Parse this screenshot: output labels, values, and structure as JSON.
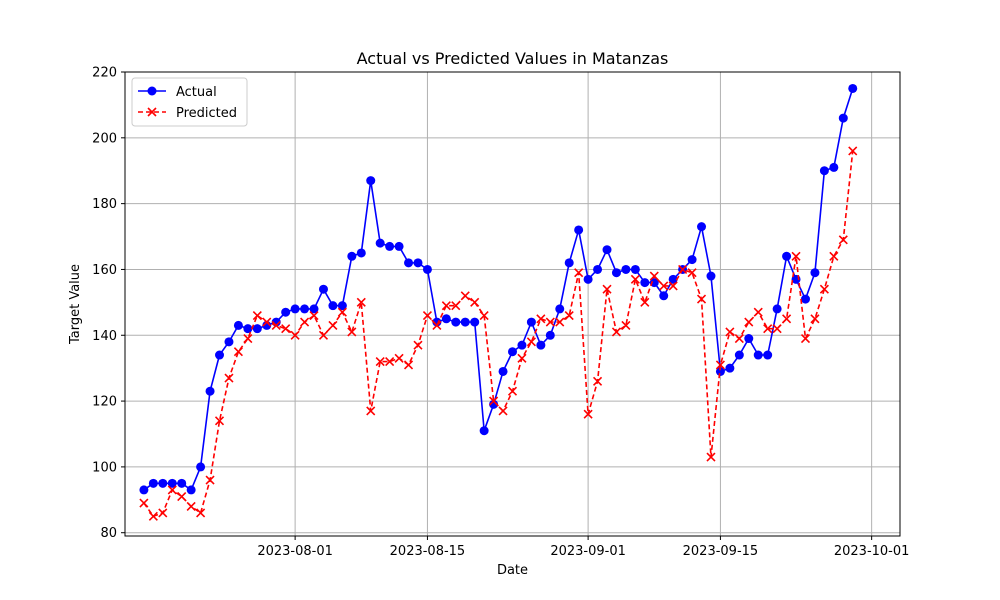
{
  "chart_data": {
    "type": "line",
    "title": "Actual vs Predicted Values in Matanzas",
    "xlabel": "Date",
    "ylabel": "Target Value",
    "start_date": "2023-07-16",
    "x_ticks": [
      "2023-08-01",
      "2023-08-15",
      "2023-09-01",
      "2023-09-15",
      "2023-10-01"
    ],
    "x_tick_dates": [
      "2023-08-01",
      "2023-08-15",
      "2023-09-01",
      "2023-09-15",
      "2023-10-01"
    ],
    "y_ticks": [
      80,
      100,
      120,
      140,
      160,
      180,
      200,
      220
    ],
    "ylim": [
      79,
      220
    ],
    "xlim_dates": [
      "2023-07-14",
      "2023-10-04"
    ],
    "grid": true,
    "legend_position": "upper-left",
    "series": [
      {
        "name": "Actual",
        "color": "#0000ff",
        "marker": "circle",
        "line_style": "solid",
        "values": [
          93,
          95,
          95,
          95,
          95,
          93,
          100,
          123,
          134,
          138,
          143,
          142,
          142,
          143,
          144,
          147,
          148,
          148,
          148,
          154,
          149,
          149,
          164,
          165,
          187,
          168,
          167,
          167,
          162,
          162,
          160,
          144,
          145,
          144,
          144,
          144,
          111,
          119,
          129,
          135,
          137,
          144,
          137,
          140,
          148,
          162,
          172,
          157,
          160,
          166,
          159,
          160,
          160,
          156,
          156,
          152,
          157,
          160,
          163,
          173,
          158,
          129,
          130,
          134,
          139,
          134,
          134,
          148,
          164,
          157,
          151,
          159,
          190,
          191,
          206,
          215
        ]
      },
      {
        "name": "Predicted",
        "color": "#ff0000",
        "marker": "x",
        "line_style": "dashed",
        "values": [
          89,
          85,
          86,
          93,
          91,
          88,
          86,
          96,
          114,
          127,
          135,
          139,
          146,
          144,
          143,
          142,
          140,
          144,
          146,
          140,
          143,
          147,
          141,
          150,
          117,
          132,
          132,
          133,
          131,
          137,
          146,
          143,
          149,
          149,
          152,
          150,
          146,
          120,
          117,
          123,
          133,
          138,
          145,
          144,
          144,
          146,
          159,
          116,
          126,
          154,
          141,
          143,
          157,
          150,
          158,
          155,
          155,
          160,
          159,
          151,
          103,
          131,
          141,
          139,
          144,
          147,
          142,
          142,
          145,
          164,
          139,
          145,
          154,
          164,
          169,
          196
        ]
      }
    ]
  }
}
